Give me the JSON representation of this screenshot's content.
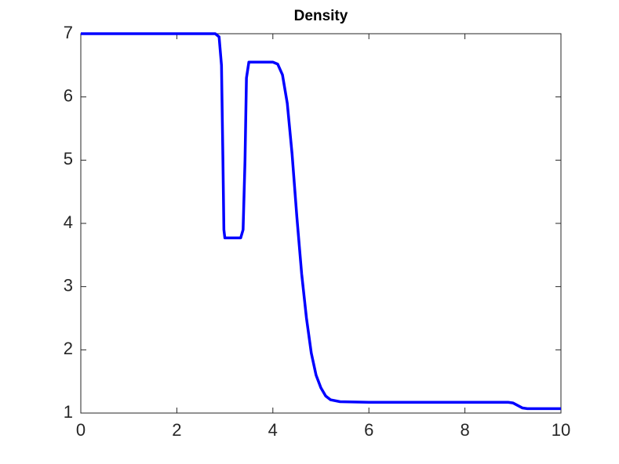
{
  "chart_data": {
    "type": "line",
    "title": "Density",
    "x": [
      0,
      2.8,
      2.88,
      2.93,
      2.96,
      2.98,
      3.0,
      3.33,
      3.38,
      3.42,
      3.45,
      3.5,
      4.0,
      4.1,
      4.2,
      4.3,
      4.4,
      4.5,
      4.6,
      4.7,
      4.8,
      4.9,
      5.0,
      5.1,
      5.2,
      5.4,
      6.0,
      8.9,
      9.0,
      9.1,
      9.2,
      9.3,
      10
    ],
    "values": [
      7,
      7,
      6.95,
      6.5,
      5,
      3.9,
      3.77,
      3.77,
      3.9,
      5,
      6.3,
      6.55,
      6.55,
      6.52,
      6.35,
      5.9,
      5.1,
      4.1,
      3.2,
      2.5,
      1.95,
      1.6,
      1.4,
      1.27,
      1.21,
      1.18,
      1.17,
      1.17,
      1.16,
      1.12,
      1.08,
      1.07,
      1.07
    ],
    "color": "#0000ff",
    "xlim": [
      0,
      10
    ],
    "xticks": [
      0,
      2,
      4,
      6,
      8,
      10
    ],
    "ylim": [
      1,
      7
    ],
    "yticks": [
      1,
      2,
      3,
      4,
      5,
      6,
      7
    ]
  }
}
